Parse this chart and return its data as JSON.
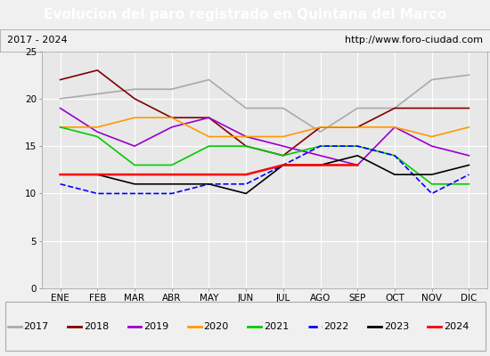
{
  "title": "Evolucion del paro registrado en Quintana del Marco",
  "subtitle_left": "2017 - 2024",
  "subtitle_right": "http://www.foro-ciudad.com",
  "months": [
    "ENE",
    "FEB",
    "MAR",
    "ABR",
    "MAY",
    "JUN",
    "JUL",
    "AGO",
    "SEP",
    "OCT",
    "NOV",
    "DIC"
  ],
  "series": [
    {
      "year": "2017",
      "color": "#aaaaaa",
      "linewidth": 1.2,
      "linestyle": "-",
      "data": [
        20,
        20.5,
        21,
        21,
        22,
        19,
        19,
        16.5,
        19,
        19,
        22,
        22.5
      ]
    },
    {
      "year": "2018",
      "color": "#800000",
      "linewidth": 1.2,
      "linestyle": "-",
      "data": [
        22,
        23,
        20,
        18,
        18,
        15,
        14,
        17,
        17,
        19,
        19,
        19
      ]
    },
    {
      "year": "2019",
      "color": "#9900cc",
      "linewidth": 1.2,
      "linestyle": "-",
      "data": [
        19,
        16.5,
        15,
        17,
        18,
        16,
        15,
        14,
        13,
        17,
        15,
        14
      ]
    },
    {
      "year": "2020",
      "color": "#ff9900",
      "linewidth": 1.2,
      "linestyle": "-",
      "data": [
        17,
        17,
        18,
        18,
        16,
        16,
        16,
        17,
        17,
        17,
        16,
        17
      ]
    },
    {
      "year": "2021",
      "color": "#00cc00",
      "linewidth": 1.2,
      "linestyle": "-",
      "data": [
        17,
        16,
        13,
        13,
        15,
        15,
        14,
        15,
        15,
        14,
        11,
        11
      ]
    },
    {
      "year": "2022",
      "color": "#0000ff",
      "linewidth": 1.2,
      "linestyle": "--",
      "data": [
        11,
        10,
        10,
        10,
        11,
        11,
        13,
        15,
        15,
        14,
        10,
        12
      ]
    },
    {
      "year": "2023",
      "color": "#000000",
      "linewidth": 1.2,
      "linestyle": "-",
      "data": [
        12,
        12,
        11,
        11,
        11,
        10,
        13,
        13,
        14,
        12,
        12,
        13
      ]
    },
    {
      "year": "2024",
      "color": "#ff0000",
      "linewidth": 1.8,
      "linestyle": "-",
      "data": [
        12,
        12,
        12,
        12,
        12,
        12,
        13,
        13,
        13,
        null,
        null,
        null
      ]
    }
  ],
  "ylim": [
    0,
    25
  ],
  "yticks": [
    0,
    5,
    10,
    15,
    20,
    25
  ],
  "title_bg_color": "#4d94ff",
  "title_text_color": "#ffffff",
  "subtitle_bg_color": "#f0f0f0",
  "plot_bg_color": "#e8e8e8",
  "grid_color": "#ffffff",
  "legend_bg_color": "#f0f0f0",
  "outer_bg_color": "#f0f0f0",
  "title_fontsize": 11,
  "subtitle_fontsize": 8,
  "axis_fontsize": 7.5,
  "legend_fontsize": 8
}
